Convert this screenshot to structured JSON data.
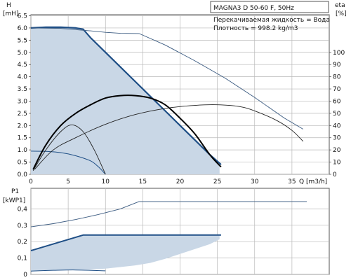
{
  "chart_data": [
    {
      "type": "line",
      "title": "MAGNA3 D 50-60 F, 50Hz",
      "xlabel": "Q [m3/h]",
      "ylabel_top": "H",
      "ylabel_bottom": "[mH]",
      "y2label_top": "eta",
      "y2label_bottom": "[%]",
      "fluid": "Перекачиваемая жидкость = Вода",
      "density": "Плотность = 998.2 kg/m3",
      "xlim": [
        0,
        40
      ],
      "ylim": [
        0,
        6.5
      ],
      "y2lim": [
        0,
        130
      ],
      "x_ticks": [
        0,
        5,
        10,
        15,
        20,
        25,
        30,
        35
      ],
      "y_ticks": [
        "0.0",
        "0.5",
        "1.0",
        "1.5",
        "2.0",
        "2.5",
        "3.0",
        "3.5",
        "4.0",
        "4.5",
        "5.0",
        "5.5",
        "6.0",
        "6.5"
      ],
      "y2_ticks": [
        "0",
        "10",
        "20",
        "30",
        "40",
        "50",
        "60",
        "70",
        "80",
        "90",
        "100"
      ],
      "grid": true,
      "operating_area": {
        "x": [
          0,
          0.5,
          1,
          2,
          4,
          6,
          7,
          8,
          10,
          12,
          14,
          16,
          18,
          20,
          22,
          24,
          25.3,
          25.3,
          0
        ],
        "y": [
          6.0,
          6.0,
          6.01,
          6.02,
          6.02,
          6.0,
          5.95,
          5.6,
          5.0,
          4.4,
          3.8,
          3.2,
          2.6,
          2.0,
          1.4,
          0.8,
          0.35,
          0,
          0
        ]
      },
      "series": [
        {
          "role": "max_head_curve",
          "x": [
            0,
            2,
            4,
            6,
            7,
            8,
            10,
            12,
            14,
            16,
            18,
            20,
            22,
            24,
            25.5
          ],
          "y": [
            6.0,
            6.03,
            6.03,
            6.0,
            5.95,
            5.6,
            5.0,
            4.4,
            3.8,
            3.2,
            2.6,
            2.0,
            1.4,
            0.8,
            0.4
          ]
        },
        {
          "role": "head_curve_high",
          "x": [
            0,
            4,
            8,
            10,
            12,
            14.5,
            18,
            22,
            26,
            30,
            34,
            36.5
          ],
          "y": [
            6.0,
            5.98,
            5.88,
            5.82,
            5.78,
            5.77,
            5.3,
            4.65,
            3.95,
            3.15,
            2.3,
            1.85
          ]
        },
        {
          "role": "head_curve_min",
          "x": [
            0,
            2,
            4,
            6,
            8,
            9,
            10
          ],
          "y": [
            0.95,
            0.94,
            0.89,
            0.76,
            0.55,
            0.32,
            0
          ]
        },
        {
          "role": "efficiency_curve_max",
          "axis": "y2",
          "x": [
            0.3,
            2,
            4,
            6,
            8,
            10,
            12,
            14,
            16,
            18,
            20,
            22,
            24,
            25.5
          ],
          "y": [
            4,
            24,
            40,
            50,
            57,
            62.5,
            64.5,
            64.5,
            62.5,
            57,
            46,
            33,
            16,
            6
          ]
        },
        {
          "role": "efficiency_curve_mid",
          "axis": "y2",
          "x": [
            0.3,
            2,
            4,
            5.5,
            7,
            8.5,
            10
          ],
          "y": [
            3,
            20,
            35,
            40.5,
            35,
            20,
            0
          ]
        },
        {
          "role": "efficiency_curve_high",
          "axis": "y2",
          "x": [
            0.5,
            3,
            6,
            10,
            14,
            18,
            22,
            25,
            28,
            30,
            33,
            35,
            36.5
          ],
          "y": [
            4,
            20,
            30,
            41,
            49,
            54,
            56.5,
            57,
            55.5,
            52,
            44,
            36,
            27
          ]
        }
      ]
    },
    {
      "type": "line",
      "ylabel_top": "P1",
      "ylabel_bottom": "[kWP1]",
      "xlim": [
        0,
        40
      ],
      "ylim": [
        0,
        0.5
      ],
      "y_ticks": [
        "0",
        "0,1",
        "0,2",
        "0,3",
        "0,4"
      ],
      "grid": true,
      "operating_area": {
        "x": [
          0,
          7,
          25.3,
          25.3,
          24,
          22,
          20,
          18,
          16,
          14,
          12,
          10,
          8,
          6,
          3,
          0
        ],
        "y": [
          0.145,
          0.24,
          0.24,
          0.215,
          0.185,
          0.155,
          0.125,
          0.095,
          0.07,
          0.055,
          0.045,
          0.035,
          0.03,
          0.028,
          0.025,
          0.02
        ]
      },
      "series": [
        {
          "role": "max_power_curve",
          "x": [
            0,
            7,
            25.5
          ],
          "y": [
            0.145,
            0.24,
            0.24
          ]
        },
        {
          "role": "power_curve_high",
          "x": [
            0,
            3,
            6,
            9,
            12,
            14.5,
            37
          ],
          "y": [
            0.29,
            0.31,
            0.335,
            0.365,
            0.4,
            0.445,
            0.445
          ]
        },
        {
          "role": "power_curve_min",
          "x": [
            0,
            3,
            6,
            10
          ],
          "y": [
            0.02,
            0.025,
            0.027,
            0.022
          ]
        }
      ]
    }
  ]
}
